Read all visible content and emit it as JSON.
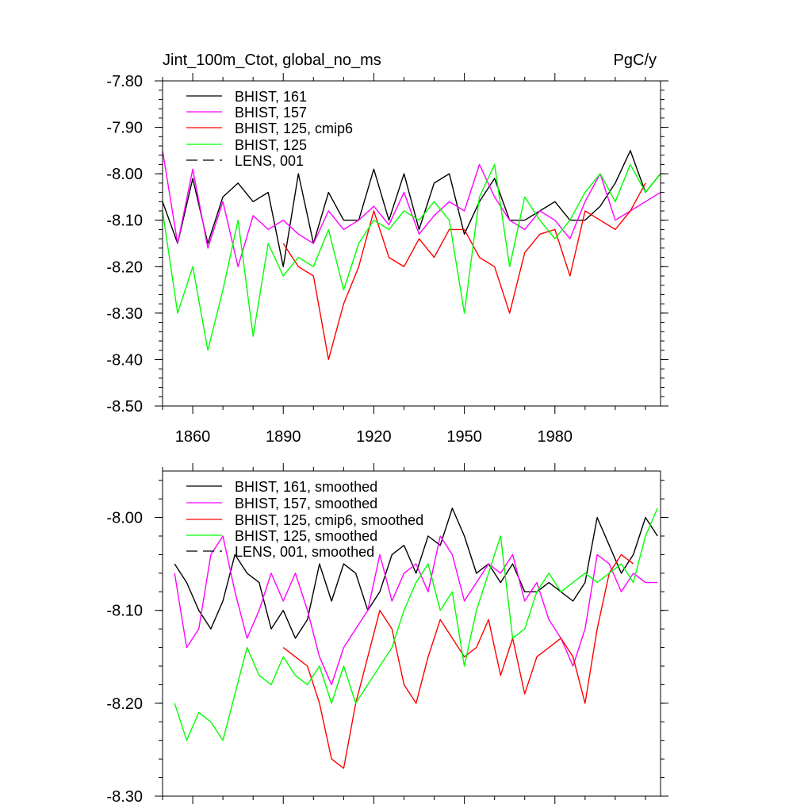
{
  "chart_data": [
    {
      "type": "line",
      "title": "Jint_100m_Ctot, global_no_ms",
      "units": "PgC/y",
      "xlim": [
        1850,
        2015
      ],
      "ylim": [
        -8.5,
        -7.8
      ],
      "xticks": [
        1860,
        1890,
        1920,
        1950,
        1980
      ],
      "xtick_labels": [
        "1860",
        "1890",
        "1920",
        "1950",
        "1980"
      ],
      "yticks": [
        -8.5,
        -8.4,
        -8.3,
        -8.2,
        -8.1,
        -8.0,
        -7.9,
        -7.8
      ],
      "ytick_labels": [
        "-8.50",
        "-8.40",
        "-8.30",
        "-8.20",
        "-8.10",
        "-8.00",
        "-7.90",
        "-7.80"
      ],
      "legend": [
        "BHIST, 161",
        "BHIST, 157",
        "BHIST, 125, cmip6",
        "BHIST, 125",
        "LENS, 001"
      ],
      "series": [
        {
          "name": "BHIST, 161",
          "color": "#000000",
          "x": [
            1850,
            1855,
            1860,
            1865,
            1870,
            1875,
            1880,
            1885,
            1890,
            1895,
            1900,
            1905,
            1910,
            1915,
            1920,
            1925,
            1930,
            1935,
            1940,
            1945,
            1950,
            1955,
            1960,
            1965,
            1970,
            1975,
            1980,
            1985,
            1990,
            1995,
            2000,
            2005,
            2010,
            2015
          ],
          "values": [
            -8.06,
            -8.15,
            -8.01,
            -8.15,
            -8.05,
            -8.02,
            -8.06,
            -8.04,
            -8.2,
            -8.0,
            -8.15,
            -8.04,
            -8.1,
            -8.1,
            -7.99,
            -8.1,
            -8.0,
            -8.12,
            -8.02,
            -8.0,
            -8.13,
            -8.06,
            -8.01,
            -8.1,
            -8.1,
            -8.08,
            -8.06,
            -8.1,
            -8.1,
            -8.07,
            -8.02,
            -7.95,
            -8.04,
            -8.0
          ]
        },
        {
          "name": "BHIST, 157",
          "color": "#ff00ff",
          "x": [
            1850,
            1855,
            1860,
            1865,
            1870,
            1875,
            1880,
            1885,
            1890,
            1895,
            1900,
            1905,
            1910,
            1915,
            1920,
            1925,
            1930,
            1935,
            1940,
            1945,
            1950,
            1955,
            1960,
            1965,
            1970,
            1975,
            1980,
            1985,
            1990,
            1995,
            2000,
            2005,
            2010,
            2015
          ],
          "values": [
            -7.95,
            -8.15,
            -7.99,
            -8.16,
            -8.06,
            -8.2,
            -8.09,
            -8.12,
            -8.1,
            -8.13,
            -8.15,
            -8.08,
            -8.12,
            -8.1,
            -8.07,
            -8.11,
            -8.04,
            -8.13,
            -8.09,
            -8.06,
            -8.08,
            -7.98,
            -8.05,
            -8.1,
            -8.12,
            -8.08,
            -8.1,
            -8.14,
            -8.06,
            -8.0,
            -8.1,
            -8.08,
            -8.06,
            -8.04
          ]
        },
        {
          "name": "BHIST, 125, cmip6",
          "color": "#ff0000",
          "x": [
            1890,
            1895,
            1900,
            1905,
            1910,
            1915,
            1920,
            1925,
            1930,
            1935,
            1940,
            1945,
            1950,
            1955,
            1960,
            1965,
            1970,
            1975,
            1980,
            1985,
            1990,
            1995,
            2000,
            2005,
            2010
          ],
          "values": [
            -8.15,
            -8.2,
            -8.22,
            -8.4,
            -8.28,
            -8.2,
            -8.08,
            -8.18,
            -8.2,
            -8.14,
            -8.18,
            -8.12,
            -8.12,
            -8.18,
            -8.2,
            -8.3,
            -8.17,
            -8.13,
            -8.12,
            -8.22,
            -8.08,
            -8.1,
            -8.12,
            -8.08,
            -8.02
          ]
        },
        {
          "name": "BHIST, 125",
          "color": "#00ff00",
          "x": [
            1850,
            1855,
            1860,
            1865,
            1870,
            1875,
            1880,
            1885,
            1890,
            1895,
            1900,
            1905,
            1910,
            1915,
            1920,
            1925,
            1930,
            1935,
            1940,
            1945,
            1950,
            1955,
            1960,
            1965,
            1970,
            1975,
            1980,
            1985,
            1990,
            1995,
            2000,
            2005,
            2010,
            2015
          ],
          "values": [
            -8.08,
            -8.3,
            -8.2,
            -8.38,
            -8.25,
            -8.1,
            -8.35,
            -8.15,
            -8.22,
            -8.18,
            -8.2,
            -8.12,
            -8.25,
            -8.15,
            -8.1,
            -8.12,
            -8.08,
            -8.1,
            -8.06,
            -8.1,
            -8.3,
            -8.05,
            -7.98,
            -8.2,
            -8.05,
            -8.1,
            -8.14,
            -8.1,
            -8.04,
            -8.0,
            -8.06,
            -7.98,
            -8.04,
            -8.0
          ]
        }
      ]
    },
    {
      "type": "line",
      "title": "",
      "xlim": [
        1850,
        2015
      ],
      "ylim": [
        -8.3,
        -7.95
      ],
      "xticks": [
        1860,
        1890,
        1920,
        1950,
        1980
      ],
      "xtick_labels": [],
      "yticks": [
        -8.3,
        -8.2,
        -8.1,
        -8.0
      ],
      "ytick_labels": [
        "-8.30",
        "-8.20",
        "-8.10",
        "-8.00"
      ],
      "legend": [
        "BHIST, 161, smoothed",
        "BHIST, 157, smoothed",
        "BHIST, 125, cmip6, smoothed",
        "BHIST, 125, smoothed",
        "LENS, 001, smoothed"
      ],
      "series": [
        {
          "name": "BHIST, 161, smoothed",
          "color": "#000000",
          "x": [
            1854,
            1858,
            1862,
            1866,
            1870,
            1874,
            1878,
            1882,
            1886,
            1890,
            1894,
            1898,
            1902,
            1906,
            1910,
            1914,
            1918,
            1922,
            1926,
            1930,
            1934,
            1938,
            1942,
            1946,
            1950,
            1954,
            1958,
            1962,
            1966,
            1970,
            1974,
            1978,
            1982,
            1986,
            1990,
            1994,
            1998,
            2002,
            2006,
            2010,
            2014
          ],
          "values": [
            -8.05,
            -8.07,
            -8.1,
            -8.12,
            -8.09,
            -8.04,
            -8.06,
            -8.07,
            -8.12,
            -8.1,
            -8.13,
            -8.11,
            -8.05,
            -8.09,
            -8.05,
            -8.06,
            -8.1,
            -8.08,
            -8.04,
            -8.03,
            -8.06,
            -8.02,
            -8.03,
            -7.99,
            -8.02,
            -8.06,
            -8.05,
            -8.07,
            -8.05,
            -8.08,
            -8.08,
            -8.07,
            -8.08,
            -8.09,
            -8.07,
            -8.0,
            -8.03,
            -8.06,
            -8.04,
            -8.0,
            -8.02
          ]
        },
        {
          "name": "BHIST, 157, smoothed",
          "color": "#ff00ff",
          "x": [
            1854,
            1858,
            1862,
            1866,
            1870,
            1874,
            1878,
            1882,
            1886,
            1890,
            1894,
            1898,
            1902,
            1906,
            1910,
            1914,
            1918,
            1922,
            1926,
            1930,
            1934,
            1938,
            1942,
            1946,
            1950,
            1954,
            1958,
            1962,
            1966,
            1970,
            1974,
            1978,
            1982,
            1986,
            1990,
            1994,
            1998,
            2002,
            2006,
            2010,
            2014
          ],
          "values": [
            -8.06,
            -8.14,
            -8.12,
            -8.04,
            -8.02,
            -8.08,
            -8.13,
            -8.1,
            -8.06,
            -8.09,
            -8.06,
            -8.1,
            -8.15,
            -8.18,
            -8.14,
            -8.12,
            -8.1,
            -8.04,
            -8.09,
            -8.06,
            -8.05,
            -8.08,
            -8.02,
            -8.04,
            -8.09,
            -8.07,
            -8.05,
            -8.06,
            -8.04,
            -8.09,
            -8.07,
            -8.11,
            -8.13,
            -8.16,
            -8.12,
            -8.04,
            -8.05,
            -8.08,
            -8.06,
            -8.07,
            -8.07
          ]
        },
        {
          "name": "BHIST, 125, cmip6, smoothed",
          "color": "#ff0000",
          "x": [
            1890,
            1894,
            1898,
            1902,
            1906,
            1910,
            1914,
            1918,
            1922,
            1926,
            1930,
            1934,
            1938,
            1942,
            1946,
            1950,
            1954,
            1958,
            1962,
            1966,
            1970,
            1974,
            1978,
            1982,
            1986,
            1990,
            1994,
            1998,
            2002,
            2006
          ],
          "values": [
            -8.14,
            -8.15,
            -8.16,
            -8.2,
            -8.26,
            -8.27,
            -8.2,
            -8.15,
            -8.1,
            -8.12,
            -8.18,
            -8.2,
            -8.15,
            -8.11,
            -8.13,
            -8.15,
            -8.14,
            -8.11,
            -8.17,
            -8.13,
            -8.19,
            -8.15,
            -8.14,
            -8.13,
            -8.15,
            -8.2,
            -8.12,
            -8.06,
            -8.04,
            -8.05
          ]
        },
        {
          "name": "BHIST, 125, smoothed",
          "color": "#00ff00",
          "x": [
            1854,
            1858,
            1862,
            1866,
            1870,
            1874,
            1878,
            1882,
            1886,
            1890,
            1894,
            1898,
            1902,
            1906,
            1910,
            1914,
            1918,
            1922,
            1926,
            1930,
            1934,
            1938,
            1942,
            1946,
            1950,
            1954,
            1958,
            1962,
            1966,
            1970,
            1974,
            1978,
            1982,
            1986,
            1990,
            1994,
            1998,
            2002,
            2006,
            2010,
            2014
          ],
          "values": [
            -8.2,
            -8.24,
            -8.21,
            -8.22,
            -8.24,
            -8.19,
            -8.14,
            -8.17,
            -8.18,
            -8.15,
            -8.17,
            -8.18,
            -8.16,
            -8.2,
            -8.16,
            -8.2,
            -8.18,
            -8.16,
            -8.14,
            -8.1,
            -8.07,
            -8.05,
            -8.1,
            -8.08,
            -8.16,
            -8.1,
            -8.06,
            -8.02,
            -8.13,
            -8.12,
            -8.08,
            -8.06,
            -8.08,
            -8.07,
            -8.06,
            -8.07,
            -8.06,
            -8.05,
            -8.07,
            -8.02,
            -7.99
          ]
        }
      ]
    }
  ],
  "colors": {
    "bhist_161": "#000000",
    "bhist_157": "#ff00ff",
    "bhist_125_cmip6": "#ff0000",
    "bhist_125": "#00ff00",
    "lens_001": "#000000"
  }
}
